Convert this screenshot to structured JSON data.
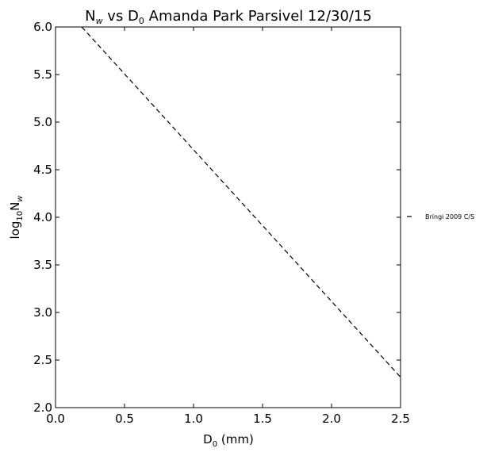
{
  "chart_data": {
    "type": "line",
    "title": "Nᵤ vs D₀ Amanda Park Parsivel 12/30/15",
    "title_parts": {
      "n": "N",
      "n_sub": "w",
      "vs": " vs D",
      "d_sub": "0",
      "rest": " Amanda Park Parsivel 12/30/15"
    },
    "xlabel": "D₀ (mm)",
    "xlabel_parts": {
      "d": "D",
      "d_sub": "0",
      "rest": " (mm)"
    },
    "ylabel": "log₁₀Nᵤ",
    "ylabel_parts": {
      "log": "log",
      "log_sub": "10",
      "n": "N",
      "n_sub": "w"
    },
    "xlim": [
      0.0,
      2.5
    ],
    "ylim": [
      2.0,
      6.0
    ],
    "xticks": [
      "0.0",
      "0.5",
      "1.0",
      "1.5",
      "2.0",
      "2.5"
    ],
    "yticks": [
      "2.0",
      "2.5",
      "3.0",
      "3.5",
      "4.0",
      "4.5",
      "5.0",
      "5.5",
      "6.0"
    ],
    "grid": false,
    "legend_position": "outside-right",
    "series": [
      {
        "name": "Bringi 2009 C/S",
        "style": "dashed",
        "color": "#000000",
        "x": [
          0.19,
          2.5
        ],
        "y": [
          6.0,
          2.32
        ]
      }
    ]
  }
}
